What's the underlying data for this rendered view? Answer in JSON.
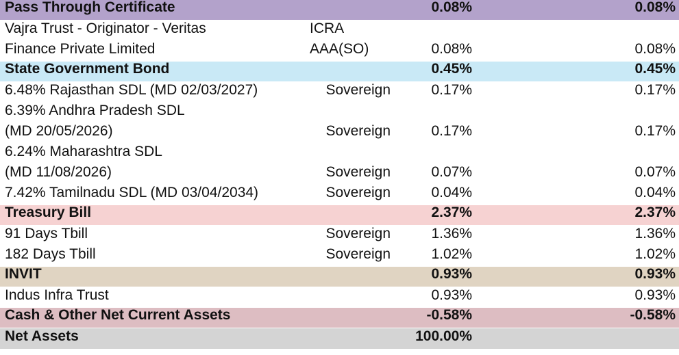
{
  "colors": {
    "pass_through": "#b3a2cb",
    "state_govt": "#c9e9f6",
    "treasury": "#f6d2d2",
    "invit": "#e0d4c2",
    "cash": "#ddbdc2",
    "net_assets": "#d4d4d4"
  },
  "rows": [
    {
      "name": "Pass Through Certificate",
      "rating": "",
      "pct1": "0.08%",
      "pct2": "0.08%"
    },
    {
      "name": "Vajra Trust - Originator - Veritas\nFinance Private Limited",
      "rating": "ICRA AAA(SO)",
      "pct1": "0.08%",
      "pct2": "0.08%"
    },
    {
      "name": "State Government Bond",
      "rating": "",
      "pct1": "0.45%",
      "pct2": "0.45%"
    },
    {
      "name": "6.48% Rajasthan SDL (MD 02/03/2027)",
      "rating": "Sovereign",
      "pct1": "0.17%",
      "pct2": "0.17%"
    },
    {
      "name": "6.39% Andhra Pradesh SDL\n (MD 20/05/2026)",
      "rating": "Sovereign",
      "pct1": "0.17%",
      "pct2": "0.17%"
    },
    {
      "name": "6.24% Maharashtra SDL\n(MD 11/08/2026)",
      "rating": "Sovereign",
      "pct1": "0.07%",
      "pct2": "0.07%"
    },
    {
      "name": "7.42% Tamilnadu SDL (MD 03/04/2034)",
      "rating": "Sovereign",
      "pct1": "0.04%",
      "pct2": "0.04%"
    },
    {
      "name": "Treasury Bill",
      "rating": "",
      "pct1": "2.37%",
      "pct2": "2.37%"
    },
    {
      "name": "91 Days Tbill",
      "rating": "Sovereign",
      "pct1": "1.36%",
      "pct2": "1.36%"
    },
    {
      "name": "182 Days Tbill",
      "rating": "Sovereign",
      "pct1": "1.02%",
      "pct2": "1.02%"
    },
    {
      "name": "INVIT",
      "rating": "",
      "pct1": "0.93%",
      "pct2": "0.93%"
    },
    {
      "name": "Indus Infra Trust",
      "rating": "",
      "pct1": "0.93%",
      "pct2": "0.93%"
    },
    {
      "name": "Cash & Other Net Current Assets",
      "rating": "",
      "pct1": "-0.58%",
      "pct2": "-0.58%"
    },
    {
      "name": "Net Assets",
      "rating": "",
      "pct1": "100.00%",
      "pct2": ""
    }
  ]
}
